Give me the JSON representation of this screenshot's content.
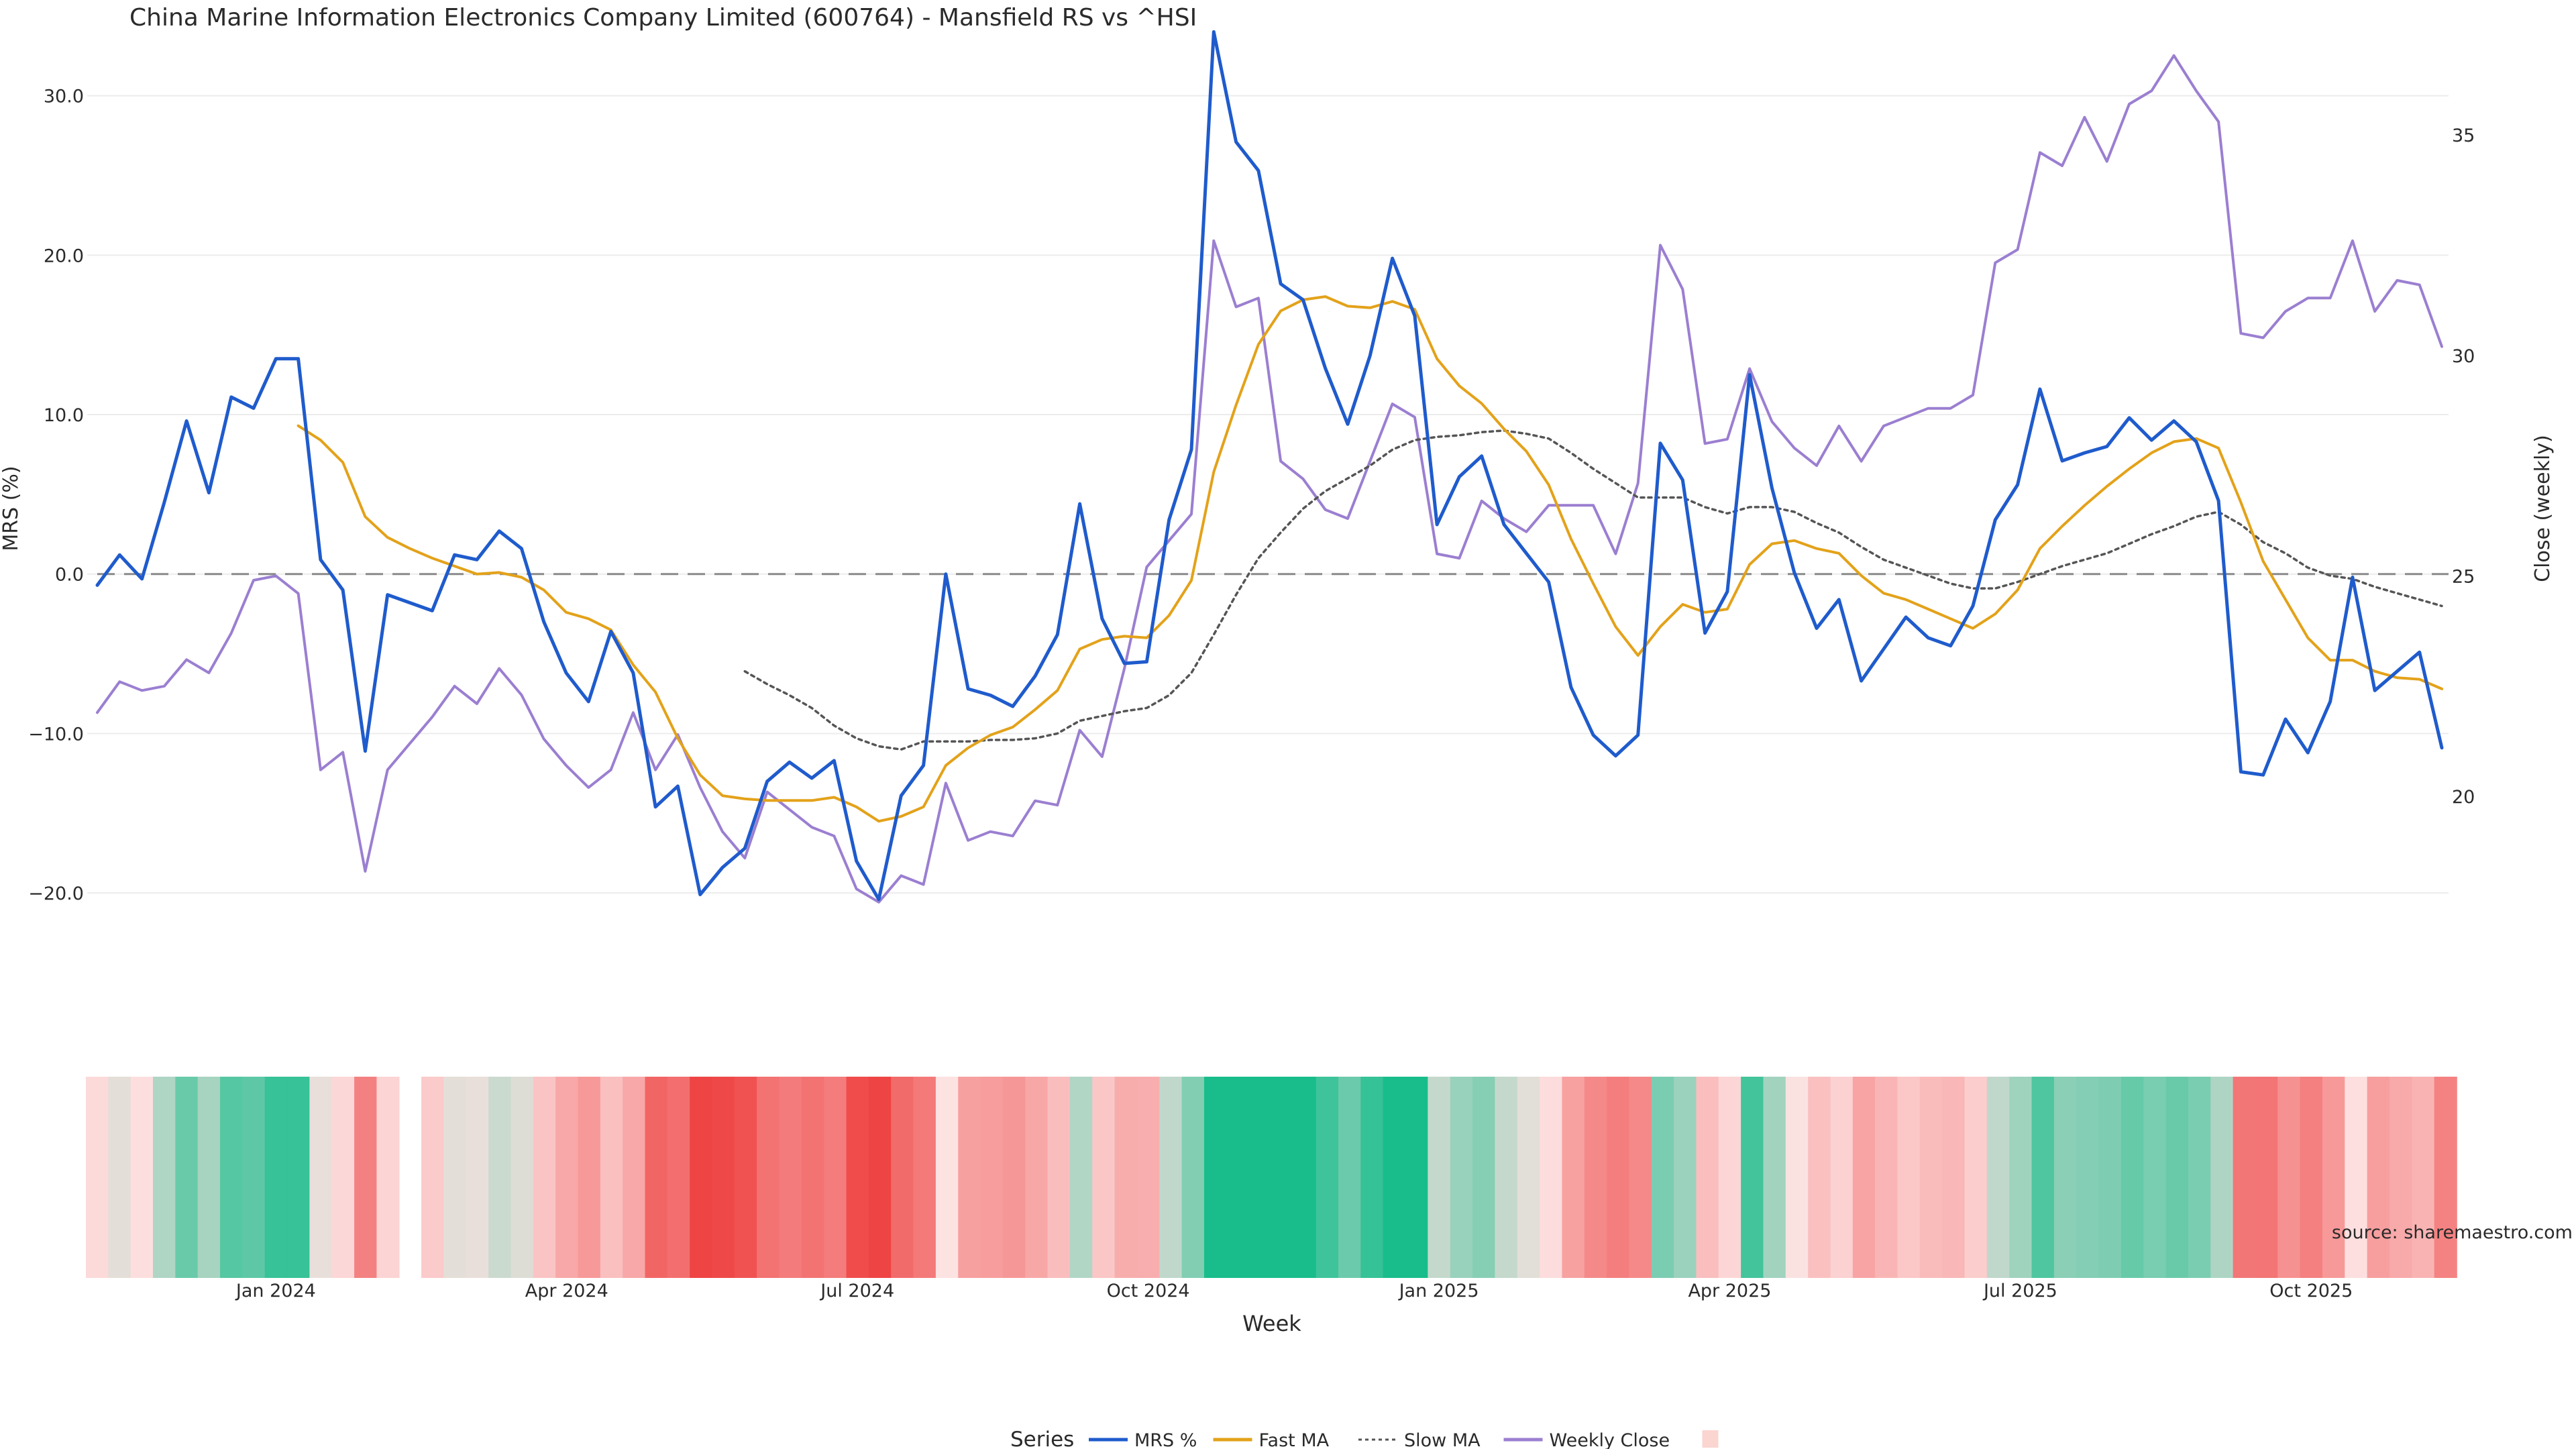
{
  "chart_data": {
    "type": "line",
    "title": "China Marine Information Electronics Company Limited (600764) - Mansfield RS vs ^HSI",
    "xlabel": "Week",
    "ylabel_left": "MRS (%)",
    "ylabel_right": "Close (weekly)",
    "source": "source: sharemaestro.com",
    "legend_title": "Series",
    "legend_position": "bottom",
    "grid": true,
    "left_axis": {
      "range": [
        -25,
        36
      ],
      "ticks": [
        30,
        20,
        10,
        0,
        -10,
        -20
      ],
      "tick_labels": [
        "30.0",
        "20.0",
        "10.0",
        "0.0",
        "−10.0",
        "−20.0"
      ]
    },
    "right_axis": {
      "range": [
        16.0,
        38.06
      ],
      "ticks": [
        35,
        30,
        25,
        20
      ],
      "tick_labels": [
        "35",
        "30",
        "25",
        "20"
      ]
    },
    "x_ticks": [
      {
        "label": "Jan 2024",
        "index": 8
      },
      {
        "label": "Apr 2024",
        "index": 21
      },
      {
        "label": "Jul 2024",
        "index": 34
      },
      {
        "label": "Oct 2024",
        "index": 47
      },
      {
        "label": "Jan 2025",
        "index": 60
      },
      {
        "label": "Apr 2025",
        "index": 73
      },
      {
        "label": "Jul 2025",
        "index": 86
      },
      {
        "label": "Oct 2025",
        "index": 99
      }
    ],
    "gap_weeks": [
      14
    ],
    "series": [
      {
        "name": "MRS %",
        "axis": "left",
        "color": "#1f5bcc",
        "style": "solid",
        "values": [
          -0.7,
          1.2,
          -0.3,
          4.5,
          9.6,
          5.1,
          11.1,
          10.4,
          13.5,
          13.5,
          0.9,
          -1.0,
          -11.1,
          -1.3,
          -1.8,
          -2.3,
          1.2,
          0.9,
          2.7,
          1.6,
          -3.0,
          -6.2,
          -8.0,
          -3.6,
          -6.2,
          -14.6,
          -13.3,
          -20.1,
          -18.4,
          -17.2,
          -13.0,
          -11.8,
          -12.8,
          -11.7,
          -18.0,
          -20.4,
          -13.9,
          -12.0,
          0.0,
          -7.2,
          -7.6,
          -8.3,
          -6.4,
          -3.8,
          4.4,
          -2.8,
          -5.6,
          -5.5,
          3.4,
          7.8,
          34.0,
          27.1,
          25.3,
          18.2,
          17.2,
          12.9,
          9.4,
          13.7,
          19.8,
          16.2,
          3.1,
          6.1,
          7.4,
          3.1,
          1.3,
          -0.5,
          -7.1,
          -10.1,
          -11.4,
          -10.1,
          8.2,
          5.9,
          -3.7,
          -1.1,
          12.5,
          5.4,
          0.1,
          -3.4,
          -1.6,
          -6.7,
          -4.7,
          -2.7,
          -4.0,
          -4.5,
          -2.0,
          3.4,
          5.6,
          11.6,
          7.1,
          7.6,
          8.0,
          9.8,
          8.4,
          9.6,
          8.3,
          4.6,
          -12.4,
          -12.6,
          -9.1,
          -11.2,
          -8.0,
          -0.2,
          -7.3,
          -6.1,
          -4.9,
          -10.9
        ]
      },
      {
        "name": "Fast MA",
        "axis": "left",
        "color": "#e3a21a",
        "style": "solid",
        "values": [
          null,
          null,
          null,
          null,
          null,
          null,
          null,
          null,
          null,
          9.3,
          8.4,
          7.0,
          3.6,
          2.3,
          1.6,
          1.0,
          0.5,
          0.0,
          0.1,
          -0.2,
          -1.0,
          -2.4,
          -2.8,
          -3.5,
          -5.7,
          -7.4,
          -10.3,
          -12.6,
          -13.9,
          -14.1,
          -14.2,
          -14.2,
          -14.2,
          -14.0,
          -14.6,
          -15.5,
          -15.2,
          -14.6,
          -12.0,
          -10.9,
          -10.1,
          -9.6,
          -8.5,
          -7.3,
          -4.7,
          -4.1,
          -3.9,
          -4.0,
          -2.6,
          -0.4,
          6.4,
          10.6,
          14.4,
          16.5,
          17.2,
          17.4,
          16.8,
          16.7,
          17.1,
          16.6,
          13.5,
          11.8,
          10.7,
          9.1,
          7.7,
          5.6,
          2.2,
          -0.6,
          -3.3,
          -5.1,
          -3.3,
          -1.9,
          -2.4,
          -2.2,
          0.6,
          1.9,
          2.1,
          1.6,
          1.3,
          -0.1,
          -1.2,
          -1.6,
          -2.2,
          -2.8,
          -3.4,
          -2.5,
          -1.0,
          1.6,
          3.0,
          4.3,
          5.5,
          6.6,
          7.6,
          8.3,
          8.5,
          7.9,
          4.5,
          0.8,
          -1.6,
          -4.0,
          -5.4,
          -5.4,
          -6.1,
          -6.5,
          -6.6,
          -7.2
        ]
      },
      {
        "name": "Slow MA",
        "axis": "left",
        "color": "#555555",
        "style": "dotted",
        "values": [
          null,
          null,
          null,
          null,
          null,
          null,
          null,
          null,
          null,
          null,
          null,
          null,
          null,
          null,
          null,
          null,
          null,
          null,
          null,
          null,
          null,
          null,
          null,
          null,
          null,
          null,
          null,
          null,
          null,
          -6.1,
          -6.9,
          -7.6,
          -8.4,
          -9.5,
          -10.3,
          -10.8,
          -11.0,
          -10.5,
          -10.5,
          -10.5,
          -10.4,
          -10.4,
          -10.3,
          -10.0,
          -9.2,
          -8.9,
          -8.6,
          -8.4,
          -7.6,
          -6.2,
          -3.8,
          -1.3,
          1.0,
          2.6,
          4.1,
          5.2,
          6.0,
          6.8,
          7.8,
          8.4,
          8.6,
          8.7,
          8.9,
          9.0,
          8.8,
          8.5,
          7.6,
          6.6,
          5.7,
          4.8,
          4.8,
          4.8,
          4.2,
          3.8,
          4.2,
          4.2,
          3.9,
          3.2,
          2.6,
          1.7,
          0.9,
          0.4,
          -0.1,
          -0.6,
          -0.9,
          -0.9,
          -0.5,
          0.0,
          0.5,
          0.9,
          1.3,
          1.9,
          2.5,
          3.0,
          3.6,
          3.9,
          3.1,
          2.0,
          1.3,
          0.4,
          -0.1,
          -0.3,
          -0.8,
          -1.2,
          -1.6,
          -2.0
        ]
      },
      {
        "name": "Weekly Close",
        "axis": "right",
        "color": "#9b7fd1",
        "style": "solid",
        "values": [
          21.9,
          22.6,
          22.4,
          22.5,
          23.1,
          22.8,
          23.7,
          24.9,
          25.0,
          24.6,
          20.6,
          21.0,
          18.3,
          20.6,
          21.2,
          21.8,
          22.5,
          22.1,
          22.9,
          22.3,
          21.3,
          20.7,
          20.2,
          20.6,
          21.9,
          20.6,
          21.4,
          20.2,
          19.2,
          18.6,
          20.1,
          19.7,
          19.3,
          19.1,
          17.9,
          17.6,
          18.2,
          18.0,
          20.3,
          19.0,
          19.2,
          19.1,
          19.9,
          19.8,
          21.5,
          20.9,
          22.9,
          25.2,
          25.8,
          26.4,
          32.6,
          31.1,
          31.3,
          27.6,
          27.2,
          26.5,
          26.3,
          27.6,
          28.9,
          28.6,
          25.5,
          25.4,
          26.7,
          26.3,
          26.0,
          26.6,
          26.6,
          26.6,
          25.5,
          27.1,
          32.5,
          31.5,
          28.0,
          28.1,
          29.7,
          28.5,
          27.9,
          27.5,
          28.4,
          27.6,
          28.4,
          28.6,
          28.8,
          28.8,
          29.1,
          32.1,
          32.4,
          34.6,
          34.3,
          35.4,
          34.4,
          35.7,
          36.0,
          36.8,
          36.0,
          35.3,
          30.5,
          30.4,
          31.0,
          31.3,
          31.3,
          32.6,
          31.0,
          31.7,
          31.6,
          30.2
        ]
      }
    ],
    "heatmap_strip": {
      "meaning": "MRS % per week",
      "low_color": "#ef4444",
      "mid_color": "#fde2e2",
      "high_color": "#18bd8b"
    },
    "legend": [
      {
        "label": "MRS %",
        "color": "#1f5bcc",
        "style": "solid"
      },
      {
        "label": "Fast MA",
        "color": "#e3a21a",
        "style": "solid"
      },
      {
        "label": "Slow MA",
        "color": "#555555",
        "style": "dotted"
      },
      {
        "label": "Weekly Close",
        "color": "#9b7fd1",
        "style": "solid"
      },
      {
        "label": "",
        "color": "#fbd5d0",
        "style": "swatch"
      }
    ]
  }
}
